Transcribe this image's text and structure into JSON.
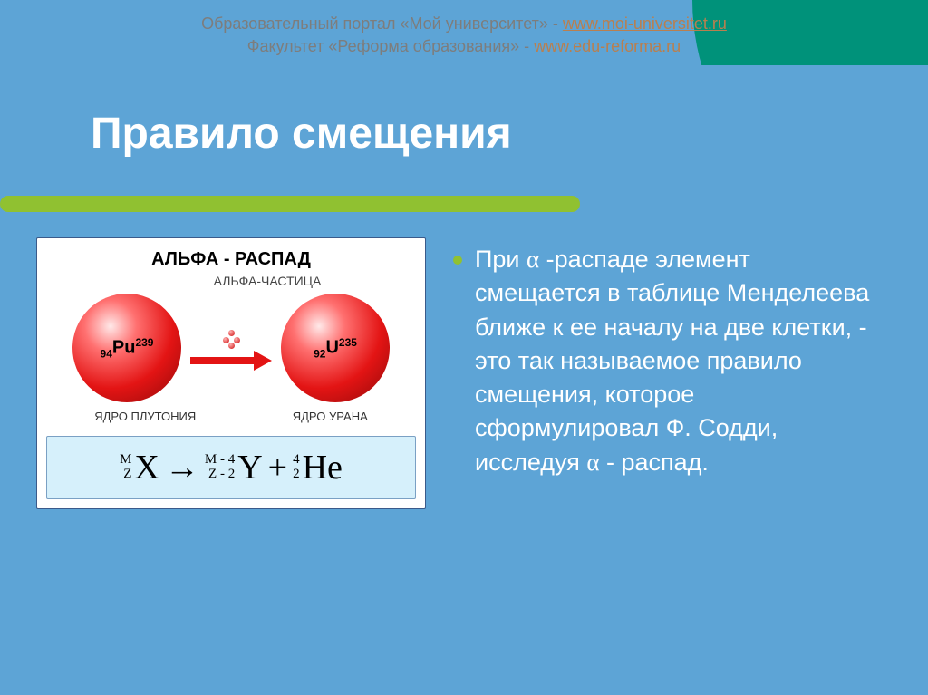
{
  "colors": {
    "slide_bg": "#5da4d6",
    "corner": "#00927a",
    "underline": "#90c131",
    "arrow": "#e31414",
    "header_gray": "#7d7d7d",
    "header_link": "#b97f4f",
    "bullet_dot": "#90c131",
    "formula_bg": "#d6f0fb"
  },
  "header": {
    "line1_a": "Образовательный портал «Мой университет» - ",
    "line1_link": "www.moi-universitet.ru",
    "line2_a": "Факультет «Реформа образования» - ",
    "line2_link": "www.edu-reforma.ru"
  },
  "title": "Правило  смещения",
  "diagram": {
    "title": "АЛЬФА - РАСПАД",
    "subtitle": "АЛЬФА-ЧАСТИЦА",
    "left_nucleus": {
      "z": "94",
      "sym": "Pu",
      "a": "239",
      "caption": "ЯДРО ПЛУТОНИЯ"
    },
    "right_nucleus": {
      "z": "92",
      "sym": "U",
      "a": "235",
      "caption": "ЯДРО УРАНА"
    }
  },
  "formula": {
    "t1_top": "M",
    "t1_bot": "Z",
    "t1_letter": "X",
    "arrow": "→",
    "t2_top": "M - 4",
    "t2_bot": "Z - 2",
    "t2_letter": "Y",
    "plus": "+",
    "t3_top": "4",
    "t3_bot": "2",
    "t3_letter": "He"
  },
  "bullet": {
    "pre": "При ",
    "alpha": "α",
    "post": " -распаде элемент смещается в таблице Менделеева ближе к ее началу на две клетки, - это так называемое правило смещения, которое сформулировал Ф. Содди, исследуя ",
    "alpha2": "α",
    "tail": " - распад."
  }
}
